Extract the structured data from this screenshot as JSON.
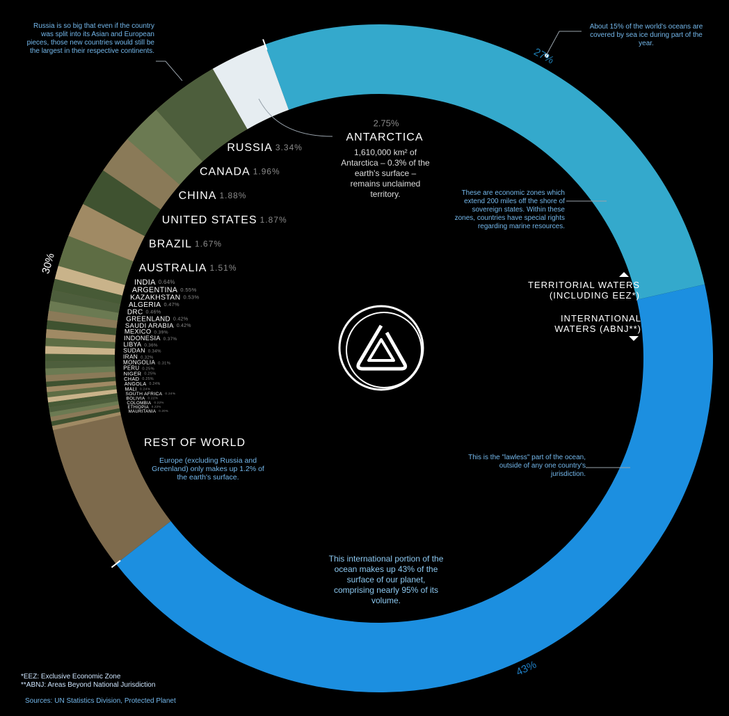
{
  "chart_data": {
    "type": "donut",
    "ring": {
      "values": [
        30,
        27,
        43
      ],
      "value_labels": [
        "30%",
        "27%",
        "43%"
      ],
      "colors": [
        "#7d6a4c",
        "#34a9cc",
        "#1c8fe0"
      ],
      "label_colors": [
        "#ffffff",
        "#1f7fb5",
        "#1f7fc5"
      ]
    },
    "antarctica": {
      "name": "ANTARCTICA",
      "value": 2.75,
      "value_label": "2.75%",
      "color": "#e6edf1",
      "note": "1,610,000 km² of Antarctica – 0.3% of the earth's surface – remains unclaimed territory."
    },
    "countries": {
      "names": [
        "RUSSIA",
        "CANADA",
        "CHINA",
        "UNITED STATES",
        "BRAZIL",
        "AUSTRALIA",
        "INDIA",
        "ARGENTINA",
        "KAZAKHSTAN",
        "ALGERIA",
        "DRC",
        "GREENLAND",
        "SAUDI ARABIA",
        "MEXICO",
        "INDONESIA",
        "LIBYA",
        "SUDAN",
        "IRAN",
        "MONGOLIA",
        "PERU",
        "NIGER",
        "CHAD",
        "ANGOLA",
        "MALI",
        "SOUTH AFRICA",
        "BOLIVIA",
        "COLOMBIA",
        "ETHIOPIA",
        "MAURITANIA"
      ],
      "values": [
        3.34,
        1.96,
        1.88,
        1.87,
        1.67,
        1.51,
        0.64,
        0.55,
        0.53,
        0.47,
        0.46,
        0.42,
        0.42,
        0.39,
        0.37,
        0.36,
        0.34,
        0.32,
        0.31,
        0.25,
        0.25,
        0.25,
        0.24,
        0.24,
        0.24,
        0.22,
        0.22,
        0.22,
        0.2
      ],
      "value_labels": [
        "3.34%",
        "1.96%",
        "1.88%",
        "1.87%",
        "1.67%",
        "1.51%",
        "0.64%",
        "0.55%",
        "0.53%",
        "0.47%",
        "0.46%",
        "0.42%",
        "0.42%",
        "0.39%",
        "0.37%",
        "0.36%",
        "0.34%",
        "0.32%",
        "0.31%",
        "0.25%",
        "0.25%",
        "0.25%",
        "0.24%",
        "0.24%",
        "0.24%",
        "0.22%",
        "0.22%",
        "0.22%",
        "0.20%"
      ],
      "palette": [
        "#4d5e3c",
        "#6b7a52",
        "#8a7a58",
        "#3f5230",
        "#a08a64",
        "#5e6d44",
        "#c9b38a",
        "#475a36"
      ]
    },
    "annotations": {
      "russia": "Russia is so big that even if the country was split into its Asian and European pieces, those new countries would still be the largest in their respective continents.",
      "sea_ice": "About 15% of the world's oceans are covered by sea ice during part of the year.",
      "eez": "These are economic zones which extend 200 miles off the shore of sovereign states. Within these zones, countries have special rights regarding marine resources.",
      "territorial": "TERRITORIAL WATERS (INCLUDING EEZ*)",
      "international": "INTERNATIONAL WATERS (ABNJ**)",
      "rest_of_world": "REST OF WORLD",
      "europe": "Europe (excluding Russia and Greenland) only makes up 1.2% of the earth's surface.",
      "lawless": "This is the \"lawless\" part of the ocean, outside of any one country's jurisdiction.",
      "international_portion": "This international portion of the ocean makes up 43% of the surface of our planet, comprising nearly 95% of its volume."
    },
    "footnotes": [
      "*EEZ: Exclusive Economic Zone",
      "**ABNJ: Areas Beyond National Jurisdiction"
    ],
    "source": "Sources: UN Statistics Division, Protected Planet"
  }
}
